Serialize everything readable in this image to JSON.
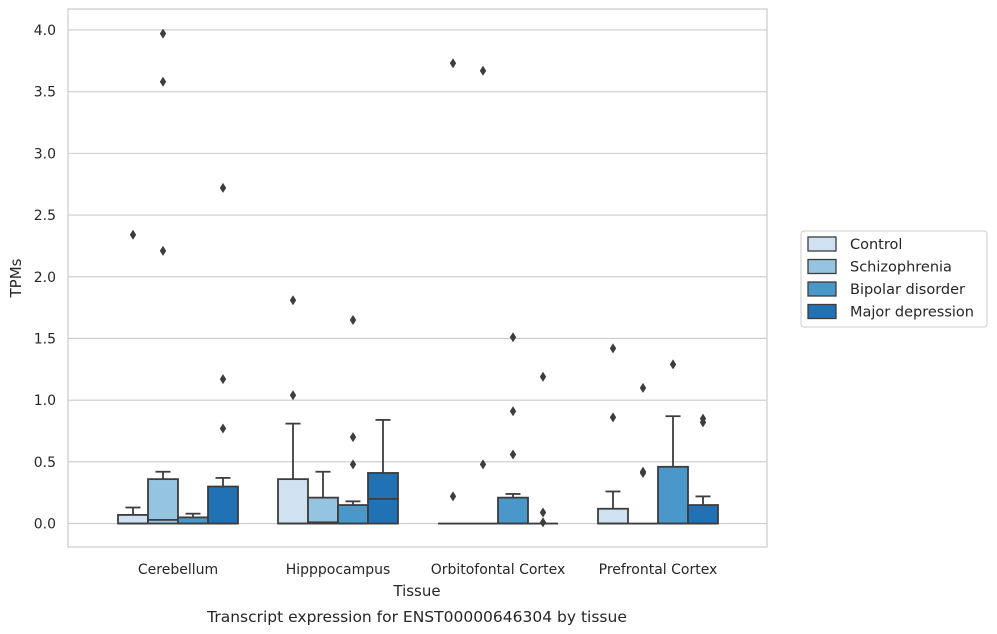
{
  "chart_data": {
    "type": "box",
    "xlabel": "Tissue",
    "ylabel": "TPMs",
    "caption": "Transcript expression for ENST00000646304 by tissue",
    "ylim": [
      -0.19,
      4.17
    ],
    "yticks": [
      "0.0",
      "0.5",
      "1.0",
      "1.5",
      "2.0",
      "2.5",
      "3.0",
      "3.5",
      "4.0"
    ],
    "grid": "horizontal",
    "legend_position": "right",
    "categories": [
      "Cerebellum",
      "Hipppocampus",
      "Orbitofontal Cortex",
      "Prefrontal Cortex"
    ],
    "series": [
      {
        "name": "Control",
        "color": "#d0e1f2"
      },
      {
        "name": "Schizophrenia",
        "color": "#94c4df"
      },
      {
        "name": "Bipolar disorder",
        "color": "#4a98c9"
      },
      {
        "name": "Major depression",
        "color": "#2171b5"
      }
    ],
    "boxes": [
      [
        {
          "min": 0.0,
          "q1": 0.0,
          "median": 0.0,
          "q3": 0.07,
          "max": 0.13,
          "outliers": [
            2.34
          ]
        },
        {
          "min": 0.0,
          "q1": 0.0,
          "median": 0.03,
          "q3": 0.36,
          "max": 0.42,
          "outliers": [
            3.97,
            3.58,
            2.21
          ]
        },
        {
          "min": 0.0,
          "q1": 0.0,
          "median": 0.0,
          "q3": 0.05,
          "max": 0.08,
          "outliers": []
        },
        {
          "min": 0.0,
          "q1": 0.0,
          "median": 0.0,
          "q3": 0.3,
          "max": 0.37,
          "outliers": [
            2.72,
            1.17,
            0.77
          ]
        }
      ],
      [
        {
          "min": 0.0,
          "q1": 0.0,
          "median": 0.0,
          "q3": 0.36,
          "max": 0.81,
          "outliers": [
            1.81,
            1.04
          ]
        },
        {
          "min": 0.0,
          "q1": 0.0,
          "median": 0.01,
          "q3": 0.21,
          "max": 0.42,
          "outliers": []
        },
        {
          "min": 0.0,
          "q1": 0.0,
          "median": 0.0,
          "q3": 0.15,
          "max": 0.18,
          "outliers": [
            1.65,
            0.7,
            0.48
          ]
        },
        {
          "min": 0.0,
          "q1": 0.0,
          "median": 0.2,
          "q3": 0.41,
          "max": 0.84,
          "outliers": []
        }
      ],
      [
        {
          "min": 0.0,
          "q1": 0.0,
          "median": 0.0,
          "q3": 0.0,
          "max": 0.0,
          "outliers": [
            3.73,
            0.22
          ]
        },
        {
          "min": 0.0,
          "q1": 0.0,
          "median": 0.0,
          "q3": 0.0,
          "max": 0.0,
          "outliers": [
            3.67,
            0.48
          ]
        },
        {
          "min": 0.0,
          "q1": 0.0,
          "median": 0.0,
          "q3": 0.21,
          "max": 0.24,
          "outliers": [
            1.51,
            0.91,
            0.56
          ]
        },
        {
          "min": 0.0,
          "q1": 0.0,
          "median": 0.0,
          "q3": 0.0,
          "max": 0.0,
          "outliers": [
            1.19,
            0.09,
            0.01
          ]
        }
      ],
      [
        {
          "min": 0.0,
          "q1": 0.0,
          "median": 0.0,
          "q3": 0.12,
          "max": 0.26,
          "outliers": [
            1.42,
            0.86
          ]
        },
        {
          "min": 0.0,
          "q1": 0.0,
          "median": 0.0,
          "q3": 0.0,
          "max": 0.0,
          "outliers": [
            1.1,
            0.42,
            0.41
          ]
        },
        {
          "min": 0.0,
          "q1": 0.0,
          "median": 0.0,
          "q3": 0.46,
          "max": 0.87,
          "outliers": [
            1.29
          ]
        },
        {
          "min": 0.0,
          "q1": 0.0,
          "median": 0.0,
          "q3": 0.15,
          "max": 0.22,
          "outliers": [
            0.85,
            0.82
          ]
        }
      ]
    ]
  }
}
